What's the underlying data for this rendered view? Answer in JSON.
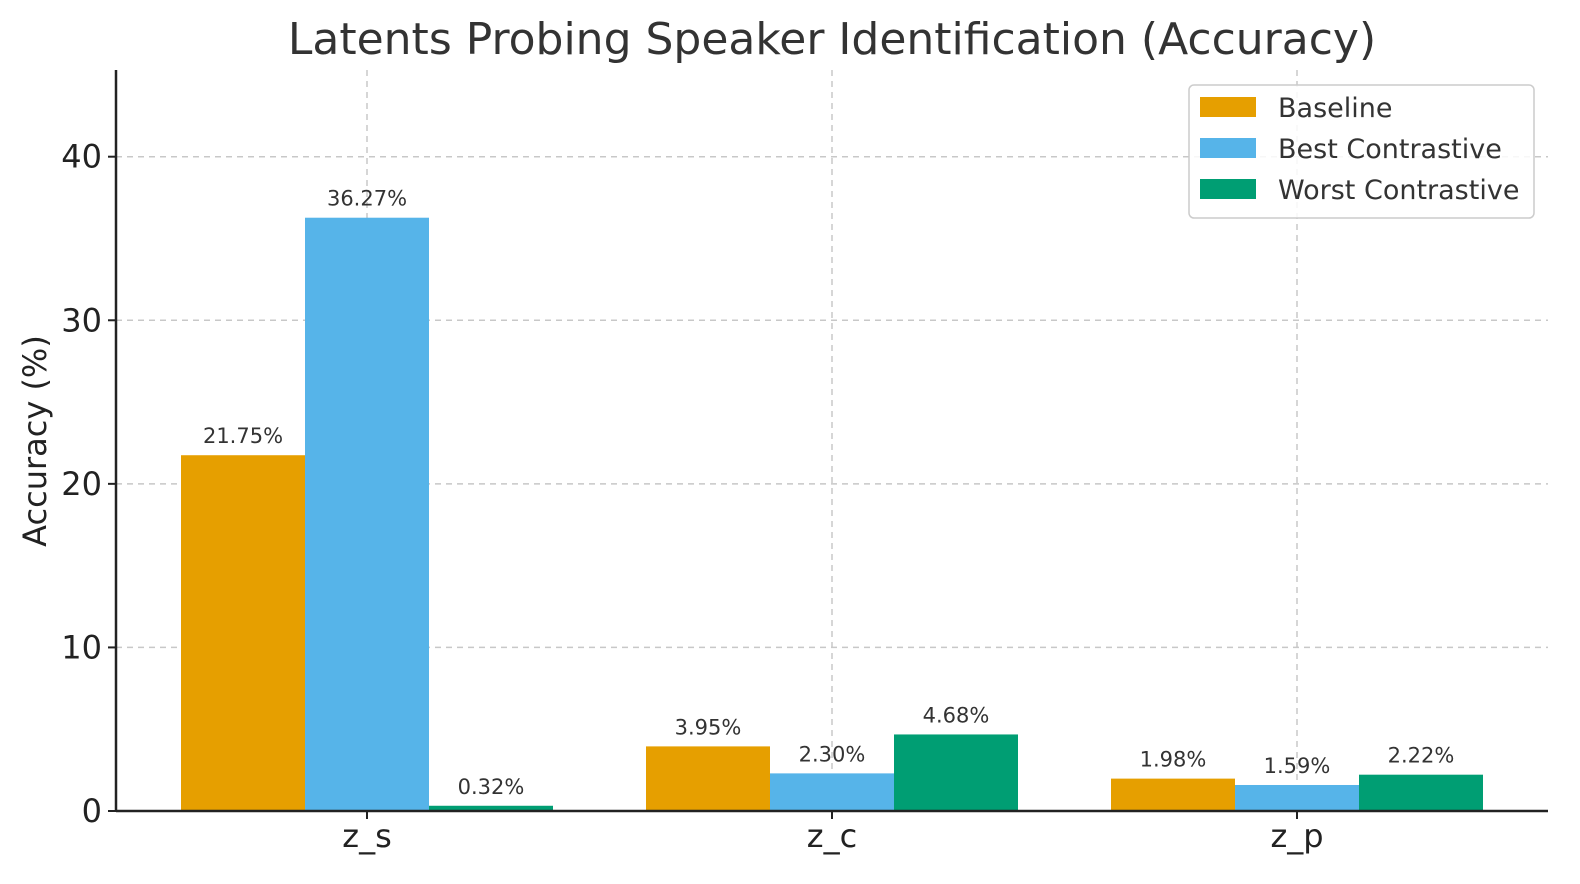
{
  "chart_data": {
    "type": "bar",
    "title": "Latents Probing Speaker Identification (Accuracy)",
    "xlabel": "",
    "ylabel": "Accuracy (%)",
    "categories": [
      "z_s",
      "z_c",
      "z_p"
    ],
    "series": [
      {
        "name": "Baseline",
        "color": "#E69F00",
        "values": [
          21.75,
          3.95,
          1.98
        ],
        "labels": [
          "21.75%",
          "3.95%",
          "1.98%"
        ]
      },
      {
        "name": "Best Contrastive",
        "color": "#56B4E9",
        "values": [
          36.27,
          2.3,
          1.59
        ],
        "labels": [
          "36.27%",
          "2.30%",
          "1.59%"
        ]
      },
      {
        "name": "Worst Contrastive",
        "color": "#009E73",
        "values": [
          0.32,
          4.68,
          2.22
        ],
        "labels": [
          "0.32%",
          "4.68%",
          "2.22%"
        ]
      }
    ],
    "ylim": [
      0,
      45.3
    ],
    "yticks": [
      0,
      10,
      20,
      30,
      40
    ],
    "ytick_labels": [
      "0",
      "10",
      "20",
      "30",
      "40"
    ],
    "grid": true,
    "legend_position": "top-right"
  }
}
